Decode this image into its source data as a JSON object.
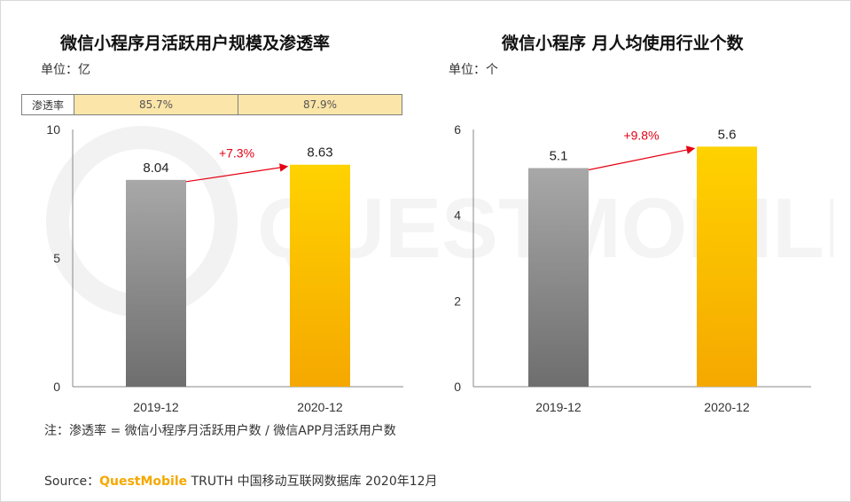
{
  "left_chart": {
    "title": "微信小程序月活跃用户规模及渗透率",
    "unit": "单位：亿",
    "penetration_label": "渗透率",
    "penetration_values": [
      "85.7%",
      "87.9%"
    ]
  },
  "right_chart": {
    "title": "微信小程序 月人均使用行业个数",
    "unit": "单位：个"
  },
  "chart_data": [
    {
      "type": "bar",
      "title": "微信小程序月活跃用户规模及渗透率",
      "ylabel": "单位：亿",
      "categories": [
        "2019-12",
        "2020-12"
      ],
      "values": [
        8.04,
        8.63
      ],
      "value_labels": [
        "8.04",
        "8.63"
      ],
      "ylim": [
        0,
        10
      ],
      "yticks": [
        "0",
        "5",
        "10"
      ],
      "growth": "+7.3%",
      "penetration": [
        "85.7%",
        "87.9%"
      ]
    },
    {
      "type": "bar",
      "title": "微信小程序 月人均使用行业个数",
      "ylabel": "单位：个",
      "categories": [
        "2019-12",
        "2020-12"
      ],
      "values": [
        5.1,
        5.6
      ],
      "value_labels": [
        "5.1",
        "5.6"
      ],
      "ylim": [
        0,
        6
      ],
      "yticks": [
        "0",
        "2",
        "4",
        "6"
      ],
      "growth": "+9.8%"
    }
  ],
  "note": "注：渗透率 = 微信小程序月活跃用户数 / 微信APP月活跃用户数",
  "source": {
    "prefix": "Source：",
    "brand": "QuestMobile",
    "rest": " TRUTH 中国移动互联网数据库 2020年12月"
  },
  "watermark": "QUESTMOBILE",
  "colors": {
    "gray_top": "#a8a8a8",
    "gray_bottom": "#6e6e6e",
    "yellow_top": "#ffd200",
    "yellow_bottom": "#f5a800",
    "growth": "#e60012",
    "brand": "#f5a800"
  }
}
